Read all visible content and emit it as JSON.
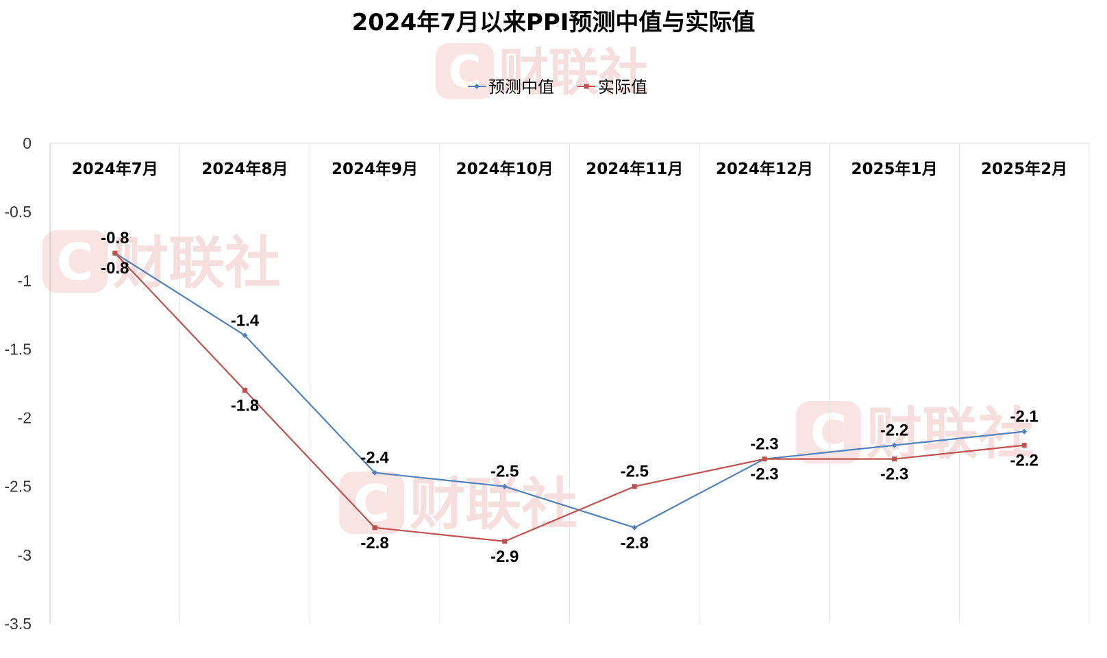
{
  "chart_data": {
    "type": "line",
    "title": "2024年7月以来PPI预测中值与实际值",
    "categories": [
      "2024年7月",
      "2024年8月",
      "2024年9月",
      "2024年10月",
      "2024年11月",
      "2024年12月",
      "2025年1月",
      "2025年2月"
    ],
    "series": [
      {
        "name": "预测中值",
        "color": "#4f81bd",
        "marker": "diamond",
        "values": [
          -0.8,
          -1.4,
          -2.4,
          -2.5,
          -2.8,
          -2.3,
          -2.2,
          -2.1
        ]
      },
      {
        "name": "实际值",
        "color": "#c0504d",
        "marker": "square",
        "values": [
          -0.8,
          -1.8,
          -2.8,
          -2.9,
          -2.5,
          -2.3,
          -2.3,
          -2.2
        ]
      }
    ],
    "ylim": [
      -3.5,
      0
    ],
    "yticks": [
      "0",
      "-0.5",
      "-1",
      "-1.5",
      "-2",
      "-2.5",
      "-3",
      "-3.5"
    ],
    "x_axis_position": "top",
    "legend_position": "top-center",
    "grid": "vertical",
    "data_labels": true
  },
  "watermark": {
    "logo_letter": "C",
    "text": "财联社"
  }
}
